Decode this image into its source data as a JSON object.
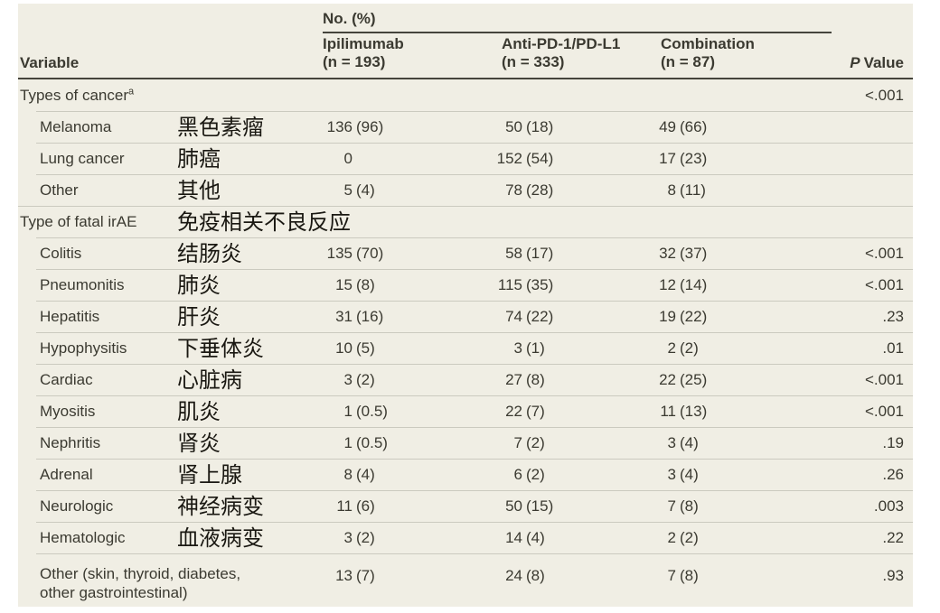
{
  "table": {
    "variable_header": "Variable",
    "spanner": "No. (%)",
    "p_header": {
      "italic": "P",
      "rest": "Value"
    },
    "columns": [
      {
        "line1": "Ipilimumab",
        "line2": "(n = 193)"
      },
      {
        "line1": "Anti-PD-1/PD-L1",
        "line2": "(n = 333)"
      },
      {
        "line1": "Combination",
        "line2": "(n = 87)"
      }
    ],
    "rows": [
      {
        "kind": "section",
        "sep": "none",
        "label": "Types of cancer",
        "sup": "a",
        "p": "<.001"
      },
      {
        "kind": "item",
        "sep": "indent",
        "label": "Melanoma",
        "zh": "黑色素瘤",
        "c1n": "136",
        "c1p": "(96)",
        "c2n": "50",
        "c2p": "(18)",
        "c3n": "49",
        "c3p": "(66)"
      },
      {
        "kind": "item",
        "sep": "indent",
        "label": "Lung cancer",
        "zh": "肺癌",
        "c1n": "0",
        "c2n": "152",
        "c2p": "(54)",
        "c3n": "17",
        "c3p": "(23)"
      },
      {
        "kind": "item",
        "sep": "indent",
        "label": "Other",
        "zh": "其他",
        "c1n": "5",
        "c1p": "(4)",
        "c2n": "78",
        "c2p": "(28)",
        "c3n": "8",
        "c3p": "(11)"
      },
      {
        "kind": "section",
        "sep": "full",
        "label": "Type of fatal irAE",
        "zh": "免疫相关不良反应"
      },
      {
        "kind": "item",
        "sep": "indent",
        "label": "Colitis",
        "zh": "结肠炎",
        "c1n": "135",
        "c1p": "(70)",
        "c2n": "58",
        "c2p": "(17)",
        "c3n": "32",
        "c3p": "(37)",
        "p": "<.001"
      },
      {
        "kind": "item",
        "sep": "indent",
        "label": "Pneumonitis",
        "zh": "肺炎",
        "c1n": "15",
        "c1p": "(8)",
        "c2n": "115",
        "c2p": "(35)",
        "c3n": "12",
        "c3p": "(14)",
        "p": "<.001"
      },
      {
        "kind": "item",
        "sep": "indent",
        "label": "Hepatitis",
        "zh": "肝炎",
        "c1n": "31",
        "c1p": "(16)",
        "c2n": "74",
        "c2p": "(22)",
        "c3n": "19",
        "c3p": "(22)",
        "p": ".23"
      },
      {
        "kind": "item",
        "sep": "indent",
        "label": "Hypophysitis",
        "zh": "下垂体炎",
        "c1n": "10",
        "c1p": "(5)",
        "c2n": "3",
        "c2p": "(1)",
        "c3n": "2",
        "c3p": "(2)",
        "p": ".01"
      },
      {
        "kind": "item",
        "sep": "indent",
        "label": "Cardiac",
        "zh": "心脏病",
        "c1n": "3",
        "c1p": "(2)",
        "c2n": "27",
        "c2p": "(8)",
        "c3n": "22",
        "c3p": "(25)",
        "p": "<.001"
      },
      {
        "kind": "item",
        "sep": "indent",
        "label": "Myositis",
        "zh": "肌炎",
        "c1n": "1",
        "c1p": "(0.5)",
        "c2n": "22",
        "c2p": "(7)",
        "c3n": "11",
        "c3p": "(13)",
        "p": "<.001"
      },
      {
        "kind": "item",
        "sep": "indent",
        "label": "Nephritis",
        "zh": "肾炎",
        "c1n": "1",
        "c1p": "(0.5)",
        "c2n": "7",
        "c2p": "(2)",
        "c3n": "3",
        "c3p": "(4)",
        "p": ".19"
      },
      {
        "kind": "item",
        "sep": "indent",
        "label": "Adrenal",
        "zh": "肾上腺",
        "c1n": "8",
        "c1p": "(4)",
        "c2n": "6",
        "c2p": "(2)",
        "c3n": "3",
        "c3p": "(4)",
        "p": ".26"
      },
      {
        "kind": "item",
        "sep": "indent",
        "label": "Neurologic",
        "zh": "神经病变",
        "c1n": "11",
        "c1p": "(6)",
        "c2n": "50",
        "c2p": "(15)",
        "c3n": "7",
        "c3p": "(8)",
        "p": ".003"
      },
      {
        "kind": "item",
        "sep": "indent",
        "label": "Hematologic",
        "zh": "血液病变",
        "c1n": "3",
        "c1p": "(2)",
        "c2n": "14",
        "c2p": "(4)",
        "c3n": "2",
        "c3p": "(2)",
        "p": ".22"
      },
      {
        "kind": "item",
        "sep": "indent",
        "tall": true,
        "label": "Other (skin, thyroid, diabetes, other gastrointestinal)",
        "c1n": "13",
        "c1p": "(7)",
        "c2n": "24",
        "c2p": "(8)",
        "c3n": "7",
        "c3p": "(8)",
        "p": ".93"
      }
    ]
  }
}
